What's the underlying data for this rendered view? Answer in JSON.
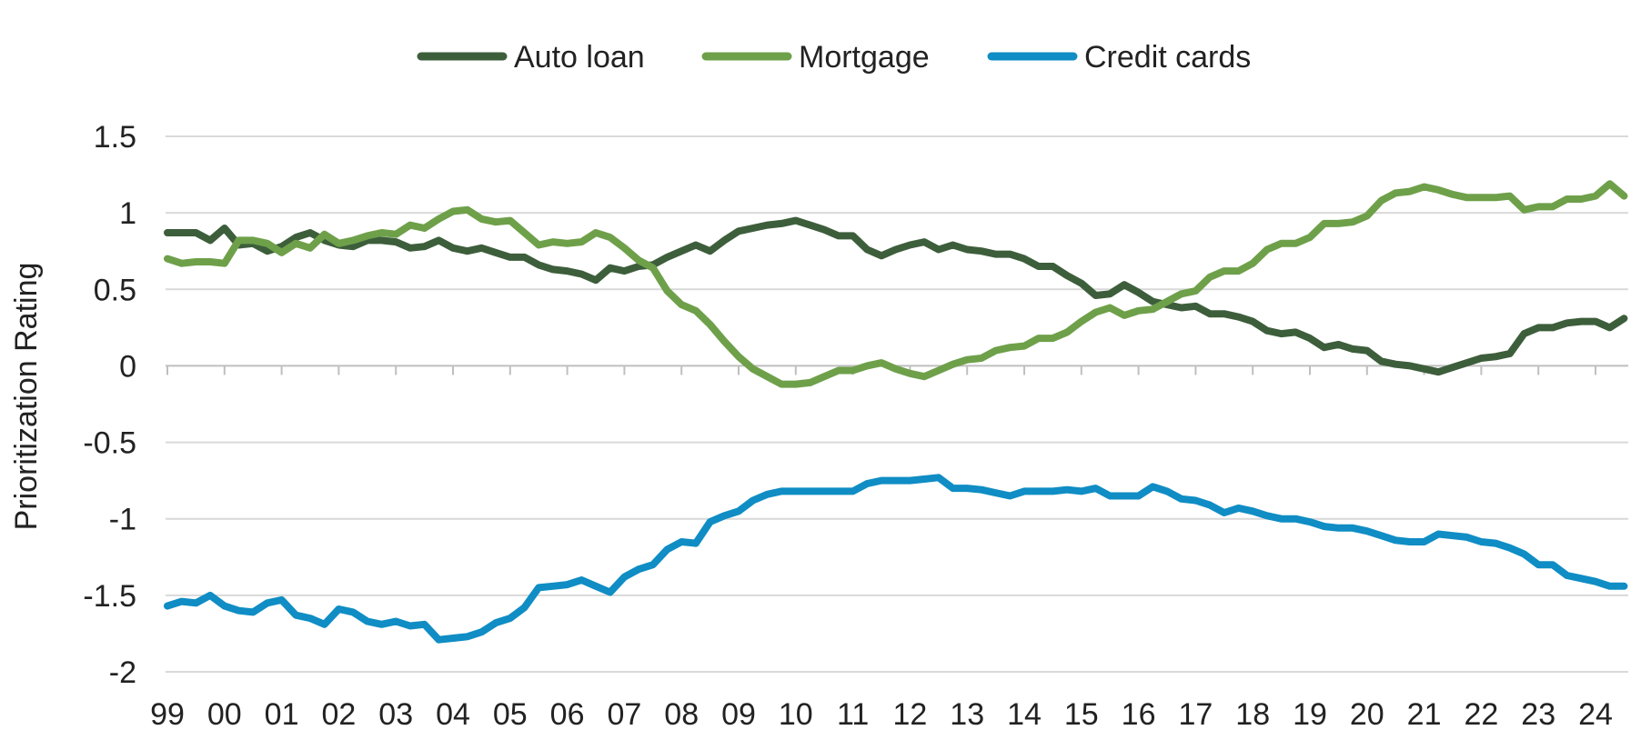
{
  "chart_data": {
    "type": "line",
    "title": "",
    "xlabel": "",
    "ylabel": "Prioritization Rating",
    "ylim": [
      -2,
      1.5
    ],
    "yticks": [
      1.5,
      1,
      0.5,
      0,
      -0.5,
      -1,
      -1.5,
      -2
    ],
    "ytick_labels": [
      "1.5",
      "1",
      "0.5",
      "0",
      "-0.5",
      "-1",
      "-1.5",
      "-2"
    ],
    "x_start_year": 1999,
    "x_end_year": 2024.6,
    "xticks": [
      1999,
      2000,
      2001,
      2002,
      2003,
      2004,
      2005,
      2006,
      2007,
      2008,
      2009,
      2010,
      2011,
      2012,
      2013,
      2014,
      2015,
      2016,
      2017,
      2018,
      2019,
      2020,
      2021,
      2022,
      2023,
      2024
    ],
    "xtick_labels": [
      "99",
      "00",
      "01",
      "02",
      "03",
      "04",
      "05",
      "06",
      "07",
      "08",
      "09",
      "10",
      "11",
      "12",
      "13",
      "14",
      "15",
      "16",
      "17",
      "18",
      "19",
      "20",
      "21",
      "22",
      "23",
      "24"
    ],
    "grid": "horizontal",
    "legend_position": "top-center",
    "x": [
      1999.0,
      1999.25,
      1999.5,
      1999.75,
      2000.0,
      2000.25,
      2000.5,
      2000.75,
      2001.0,
      2001.25,
      2001.5,
      2001.75,
      2002.0,
      2002.25,
      2002.5,
      2002.75,
      2003.0,
      2003.25,
      2003.5,
      2003.75,
      2004.0,
      2004.25,
      2004.5,
      2004.75,
      2005.0,
      2005.25,
      2005.5,
      2005.75,
      2006.0,
      2006.25,
      2006.5,
      2006.75,
      2007.0,
      2007.25,
      2007.5,
      2007.75,
      2008.0,
      2008.25,
      2008.5,
      2008.75,
      2009.0,
      2009.25,
      2009.5,
      2009.75,
      2010.0,
      2010.25,
      2010.5,
      2010.75,
      2011.0,
      2011.25,
      2011.5,
      2011.75,
      2012.0,
      2012.25,
      2012.5,
      2012.75,
      2013.0,
      2013.25,
      2013.5,
      2013.75,
      2014.0,
      2014.25,
      2014.5,
      2014.75,
      2015.0,
      2015.25,
      2015.5,
      2015.75,
      2016.0,
      2016.25,
      2016.5,
      2016.75,
      2017.0,
      2017.25,
      2017.5,
      2017.75,
      2018.0,
      2018.25,
      2018.5,
      2018.75,
      2019.0,
      2019.25,
      2019.5,
      2019.75,
      2020.0,
      2020.25,
      2020.5,
      2020.75,
      2021.0,
      2021.25,
      2021.5,
      2021.75,
      2022.0,
      2022.25,
      2022.5,
      2022.75,
      2023.0,
      2023.25,
      2023.5,
      2023.75,
      2024.0,
      2024.25,
      2024.5
    ],
    "series": [
      {
        "name": "Auto loan",
        "color": "#3d5e3b",
        "values": [
          0.87,
          0.87,
          0.87,
          0.82,
          0.9,
          0.79,
          0.8,
          0.75,
          0.78,
          0.84,
          0.87,
          0.82,
          0.79,
          0.78,
          0.82,
          0.82,
          0.81,
          0.77,
          0.78,
          0.82,
          0.77,
          0.75,
          0.77,
          0.74,
          0.71,
          0.71,
          0.66,
          0.63,
          0.62,
          0.6,
          0.56,
          0.64,
          0.62,
          0.65,
          0.66,
          0.71,
          0.75,
          0.79,
          0.75,
          0.82,
          0.88,
          0.9,
          0.92,
          0.93,
          0.95,
          0.92,
          0.89,
          0.85,
          0.85,
          0.76,
          0.72,
          0.76,
          0.79,
          0.81,
          0.76,
          0.79,
          0.76,
          0.75,
          0.73,
          0.73,
          0.7,
          0.65,
          0.65,
          0.59,
          0.54,
          0.46,
          0.47,
          0.53,
          0.48,
          0.42,
          0.4,
          0.38,
          0.39,
          0.34,
          0.34,
          0.32,
          0.29,
          0.23,
          0.21,
          0.22,
          0.18,
          0.12,
          0.14,
          0.11,
          0.1,
          0.03,
          0.01,
          0.0,
          -0.02,
          -0.04,
          -0.01,
          0.02,
          0.05,
          0.06,
          0.08,
          0.21,
          0.25,
          0.25,
          0.28,
          0.29,
          0.29,
          0.25,
          0.31
        ]
      },
      {
        "name": "Mortgage",
        "color": "#6ea04a",
        "values": [
          0.7,
          0.67,
          0.68,
          0.68,
          0.67,
          0.82,
          0.82,
          0.8,
          0.74,
          0.8,
          0.77,
          0.86,
          0.8,
          0.82,
          0.85,
          0.87,
          0.86,
          0.92,
          0.9,
          0.96,
          1.01,
          1.02,
          0.96,
          0.94,
          0.95,
          0.87,
          0.79,
          0.81,
          0.8,
          0.81,
          0.87,
          0.84,
          0.77,
          0.69,
          0.64,
          0.49,
          0.4,
          0.36,
          0.27,
          0.16,
          0.06,
          -0.02,
          -0.07,
          -0.12,
          -0.12,
          -0.11,
          -0.07,
          -0.03,
          -0.03,
          0.0,
          0.02,
          -0.02,
          -0.05,
          -0.07,
          -0.03,
          0.01,
          0.04,
          0.05,
          0.1,
          0.12,
          0.13,
          0.18,
          0.18,
          0.22,
          0.29,
          0.35,
          0.38,
          0.33,
          0.36,
          0.37,
          0.42,
          0.47,
          0.49,
          0.58,
          0.62,
          0.62,
          0.67,
          0.76,
          0.8,
          0.8,
          0.84,
          0.93,
          0.93,
          0.94,
          0.98,
          1.08,
          1.13,
          1.14,
          1.17,
          1.15,
          1.12,
          1.1,
          1.1,
          1.1,
          1.11,
          1.02,
          1.04,
          1.04,
          1.09,
          1.09,
          1.11,
          1.19,
          1.11
        ]
      },
      {
        "name": "Credit cards",
        "color": "#0f8dc4",
        "values": [
          -1.57,
          -1.54,
          -1.55,
          -1.5,
          -1.57,
          -1.6,
          -1.61,
          -1.55,
          -1.53,
          -1.63,
          -1.65,
          -1.69,
          -1.59,
          -1.61,
          -1.67,
          -1.69,
          -1.67,
          -1.7,
          -1.69,
          -1.79,
          -1.78,
          -1.77,
          -1.74,
          -1.68,
          -1.65,
          -1.58,
          -1.45,
          -1.44,
          -1.43,
          -1.4,
          -1.44,
          -1.48,
          -1.38,
          -1.33,
          -1.3,
          -1.2,
          -1.15,
          -1.16,
          -1.02,
          -0.98,
          -0.95,
          -0.88,
          -0.84,
          -0.82,
          -0.82,
          -0.82,
          -0.82,
          -0.82,
          -0.82,
          -0.77,
          -0.75,
          -0.75,
          -0.75,
          -0.74,
          -0.73,
          -0.8,
          -0.8,
          -0.81,
          -0.83,
          -0.85,
          -0.82,
          -0.82,
          -0.82,
          -0.81,
          -0.82,
          -0.8,
          -0.85,
          -0.85,
          -0.85,
          -0.79,
          -0.82,
          -0.87,
          -0.88,
          -0.91,
          -0.96,
          -0.93,
          -0.95,
          -0.98,
          -1.0,
          -1.0,
          -1.02,
          -1.05,
          -1.06,
          -1.06,
          -1.08,
          -1.11,
          -1.14,
          -1.15,
          -1.15,
          -1.1,
          -1.11,
          -1.12,
          -1.15,
          -1.16,
          -1.19,
          -1.23,
          -1.3,
          -1.3,
          -1.37,
          -1.39,
          -1.41,
          -1.44,
          -1.44
        ]
      }
    ]
  }
}
